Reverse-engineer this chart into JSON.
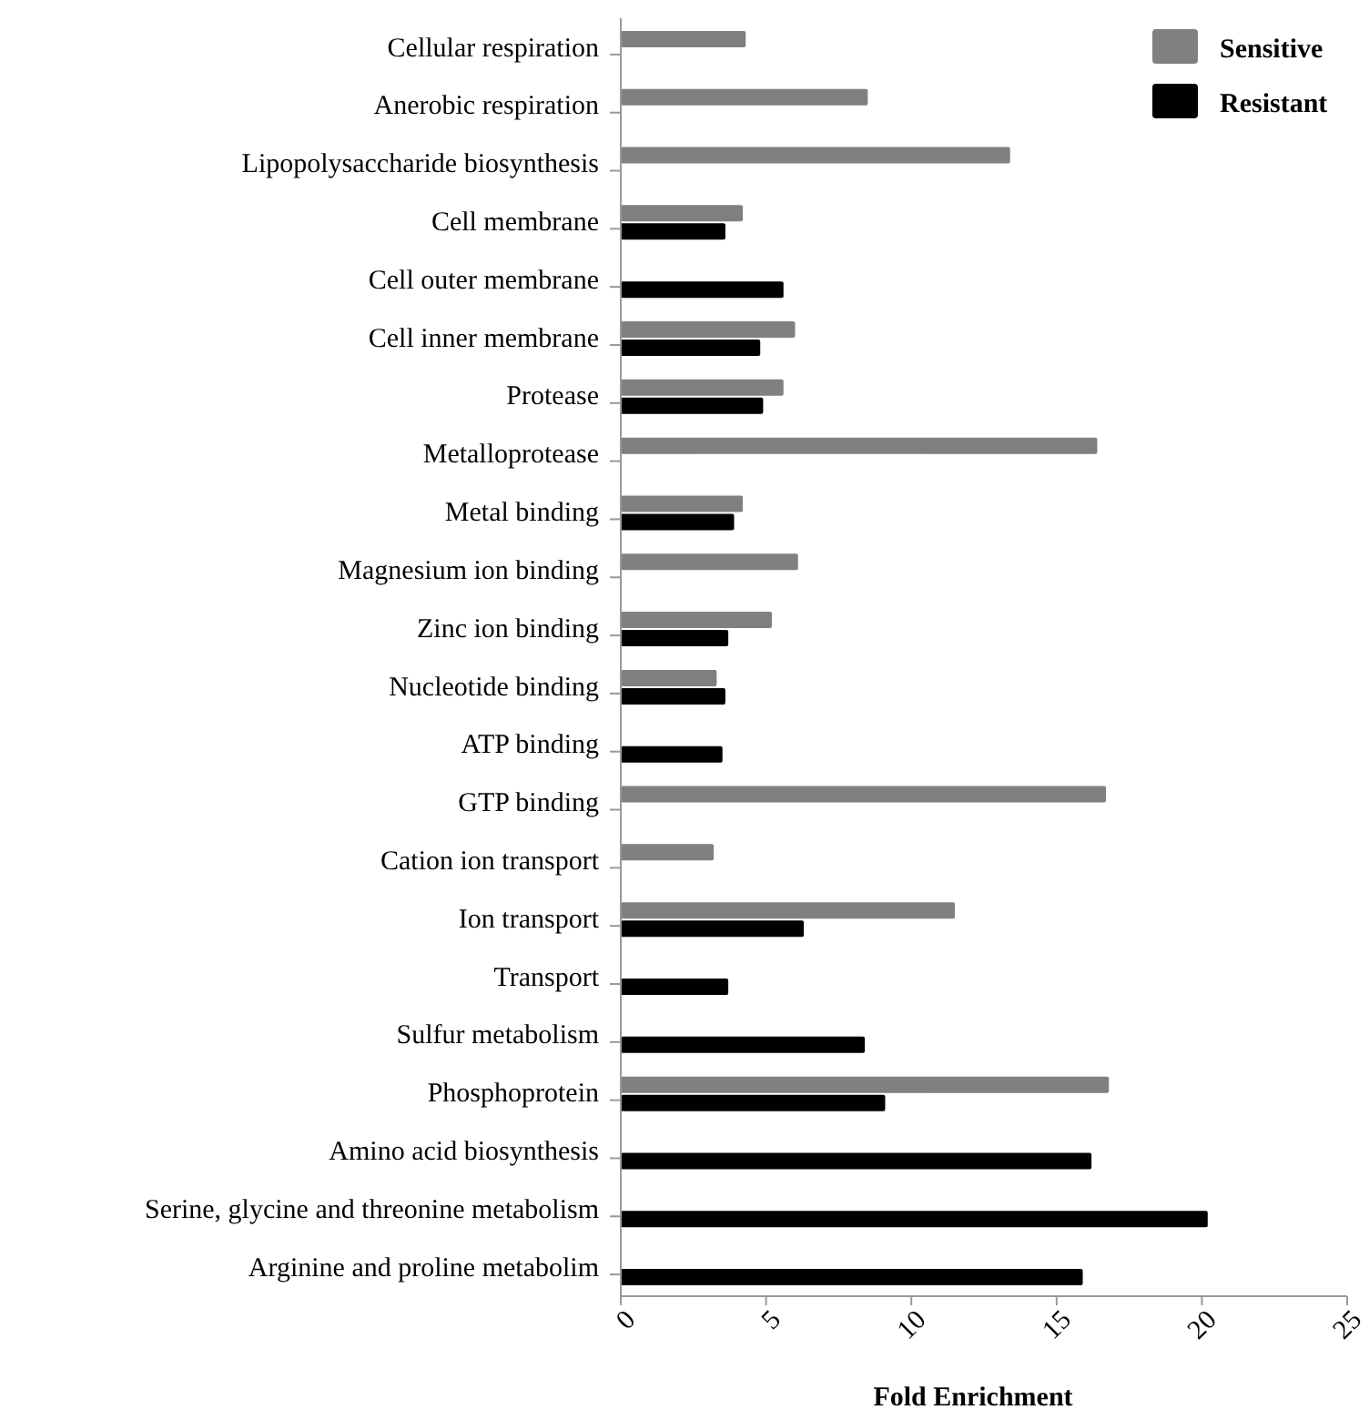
{
  "chart_data": {
    "type": "bar",
    "orientation": "horizontal",
    "xlabel": "Fold Enrichment",
    "categories": [
      "Cellular respiration",
      "Anerobic respiration",
      "Lipopolysaccharide biosynthesis",
      "Cell membrane",
      "Cell outer membrane",
      "Cell inner membrane",
      "Protease",
      "Metalloprotease",
      "Metal binding",
      "Magnesium ion binding",
      "Zinc ion binding",
      "Nucleotide binding",
      "ATP binding",
      "GTP binding",
      "Cation ion transport",
      "Ion transport",
      "Transport",
      "Sulfur metabolism",
      "Phosphoprotein",
      "Amino acid biosynthesis",
      "Serine, glycine and threonine metabolism",
      "Arginine and proline metabolim"
    ],
    "series": [
      {
        "name": "Sensitive",
        "color": "#808080",
        "values": [
          4.3,
          8.5,
          13.4,
          4.2,
          null,
          6.0,
          5.6,
          16.4,
          4.2,
          6.1,
          5.2,
          3.3,
          null,
          16.7,
          3.2,
          11.5,
          null,
          null,
          16.8,
          null,
          null,
          null
        ]
      },
      {
        "name": "Resistant",
        "color": "#000000",
        "values": [
          null,
          null,
          null,
          3.6,
          5.6,
          4.8,
          4.9,
          null,
          3.9,
          null,
          3.7,
          3.6,
          3.5,
          null,
          null,
          6.3,
          3.7,
          8.4,
          9.1,
          16.2,
          20.2,
          15.9
        ]
      }
    ],
    "xlim": [
      0,
      25
    ],
    "xticks": [
      0,
      5,
      10,
      15,
      20,
      25
    ],
    "legend": "top right"
  }
}
